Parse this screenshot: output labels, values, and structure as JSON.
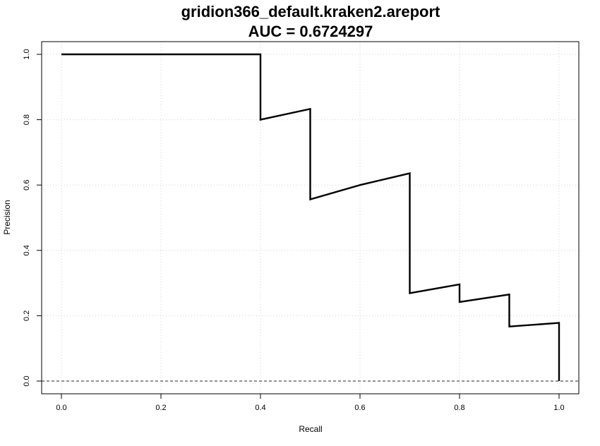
{
  "chart_data": {
    "type": "line",
    "title": "gridion366_default.kraken2.areport",
    "subtitle": "AUC = 0.6724297",
    "xlabel": "Recall",
    "ylabel": "Precision",
    "xlim": [
      0,
      1
    ],
    "ylim": [
      0,
      1
    ],
    "xticks": [
      "0.0",
      "0.2",
      "0.4",
      "0.6",
      "0.8",
      "1.0"
    ],
    "yticks": [
      "0.0",
      "0.2",
      "0.4",
      "0.6",
      "0.8",
      "1.0"
    ],
    "grid": true,
    "baseline": {
      "y": 0,
      "style": "dashed",
      "color": "#555555"
    },
    "series": [
      {
        "color": "#000000",
        "x": [
          0.0,
          0.4,
          0.4,
          0.5,
          0.5,
          0.6,
          0.7,
          0.7,
          0.8,
          0.8,
          0.9,
          0.9,
          1.0,
          1.0
        ],
        "y": [
          1.0,
          1.0,
          0.8,
          0.833,
          0.556,
          0.6,
          0.636,
          0.269,
          0.296,
          0.242,
          0.265,
          0.167,
          0.178,
          0.0
        ]
      }
    ]
  }
}
